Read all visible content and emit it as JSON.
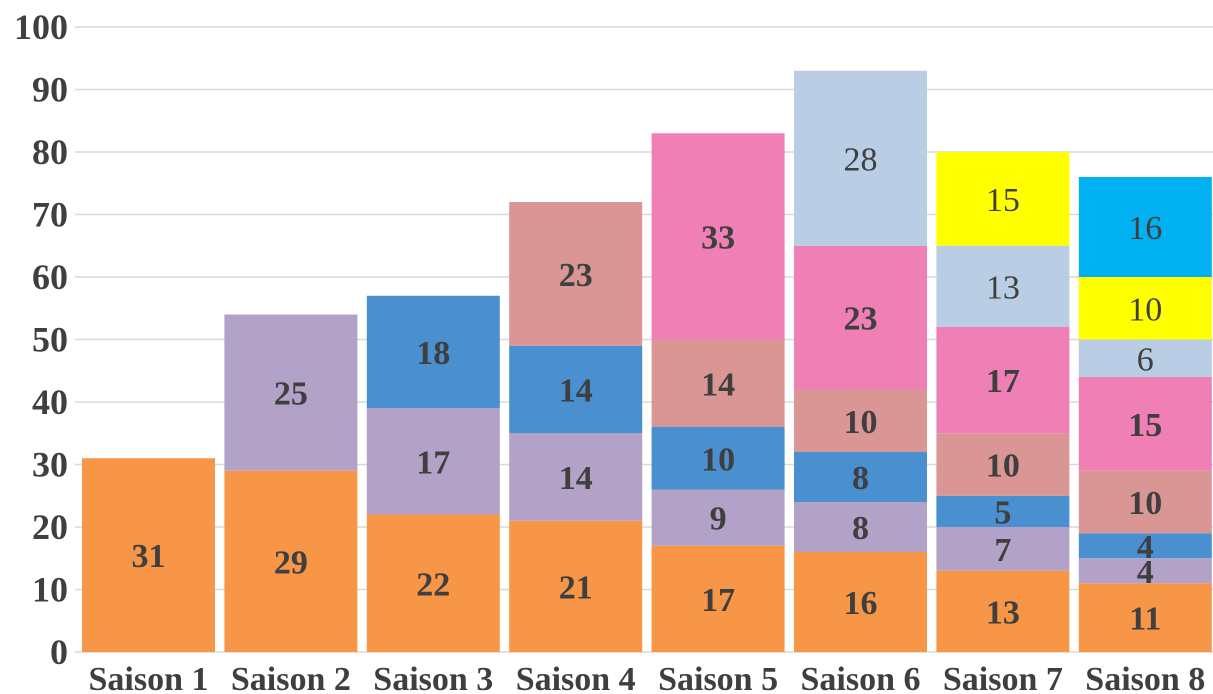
{
  "chart_data": {
    "type": "bar",
    "stacked": true,
    "title": "",
    "xlabel": "",
    "ylabel": "",
    "ylim": [
      0,
      100
    ],
    "yticks": [
      0,
      10,
      20,
      30,
      40,
      50,
      60,
      70,
      80,
      90,
      100
    ],
    "grid": true,
    "legend": "none",
    "categories": [
      "Saison 1",
      "Saison 2",
      "Saison 3",
      "Saison 4",
      "Saison 5",
      "Saison 6",
      "Saison 7",
      "Saison 8"
    ],
    "series": [
      {
        "color": "#f79646",
        "label_weight": "bold",
        "values": [
          31,
          29,
          22,
          21,
          17,
          16,
          13,
          11
        ]
      },
      {
        "color": "#b3a2c7",
        "label_weight": "bold",
        "values": [
          null,
          25,
          17,
          14,
          9,
          8,
          7,
          4
        ]
      },
      {
        "color": "#4a8fd0",
        "label_weight": "bold",
        "values": [
          null,
          null,
          18,
          14,
          10,
          8,
          5,
          4
        ]
      },
      {
        "color": "#d99694",
        "label_weight": "bold",
        "values": [
          null,
          null,
          null,
          23,
          14,
          10,
          10,
          10
        ]
      },
      {
        "color": "#f07fb6",
        "label_weight": "bold",
        "values": [
          null,
          null,
          null,
          null,
          33,
          23,
          17,
          15
        ]
      },
      {
        "color": "#b9cde5",
        "label_weight": "normal",
        "values": [
          null,
          null,
          null,
          null,
          null,
          28,
          13,
          6
        ]
      },
      {
        "color": "#ffff00",
        "label_weight": "normal",
        "values": [
          null,
          null,
          null,
          null,
          null,
          null,
          15,
          10
        ]
      },
      {
        "color": "#00b0f0",
        "label_weight": "normal",
        "values": [
          null,
          null,
          null,
          null,
          null,
          null,
          null,
          16
        ]
      }
    ]
  }
}
